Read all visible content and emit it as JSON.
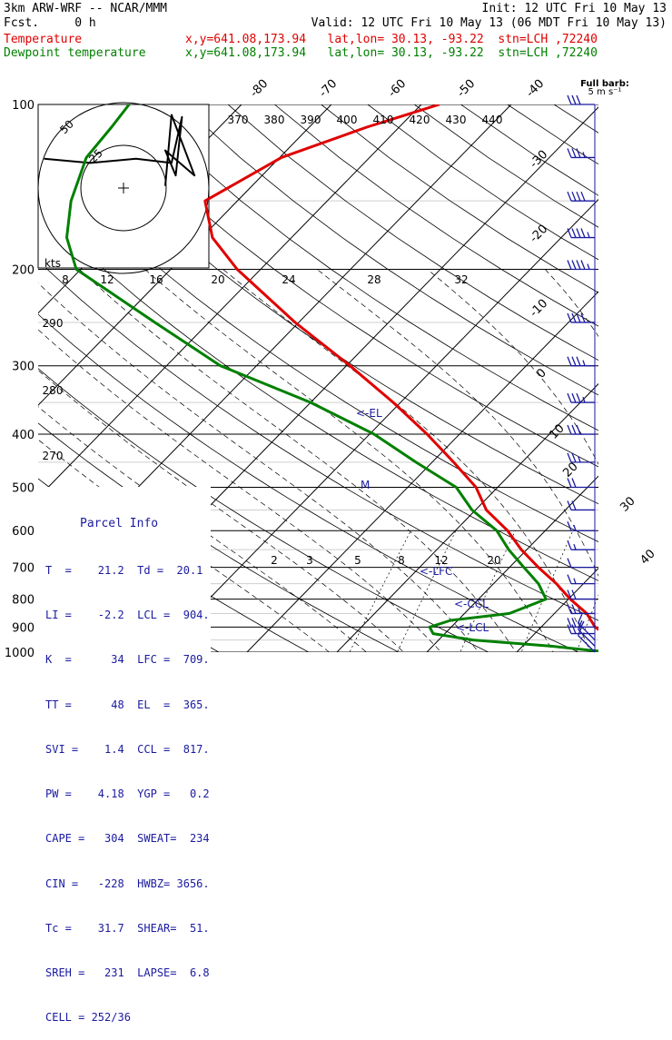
{
  "header": {
    "model": "3km ARW-WRF -- NCAR/MMM",
    "init": "Init: 12 UTC Fri 10 May 13",
    "fcst": "Fcst.     0 h",
    "valid": "Valid: 12 UTC Fri 10 May 13 (06 MDT Fri 10 May 13)",
    "temp_label": "Temperature",
    "temp_loc": "x,y=641.08,173.94   lat,lon= 30.13, -93.22  stn=LCH ,72240",
    "dew_label": "Dewpoint temperature",
    "dew_loc": "x,y=641.08,173.94   lat,lon= 30.13, -93.22  stn=LCH ,72240"
  },
  "barb_legend": {
    "line1": "Full barb:",
    "line2": "5 m s⁻¹"
  },
  "pressure_labels": [
    "100",
    "200",
    "300",
    "400",
    "500",
    "600",
    "700",
    "800",
    "900",
    "1000"
  ],
  "temp_top_labels": [
    "-80",
    "-70",
    "-60",
    "-50",
    "-40"
  ],
  "temp_right_labels": [
    "-30",
    "-20",
    "-10",
    "0",
    "10",
    "20",
    "30",
    "40"
  ],
  "theta_labels": [
    "370",
    "380",
    "390",
    "400",
    "410",
    "420",
    "430",
    "440"
  ],
  "theta_left_labels": [
    "290",
    "280",
    "270"
  ],
  "mixing_ratio_labels": [
    "2",
    "3",
    "5",
    "8",
    "12",
    "20"
  ],
  "hodograph": {
    "units": "kts",
    "ring_labels": [
      "25",
      "50"
    ],
    "speed_labels": [
      "8",
      "12",
      "16",
      "20",
      "24",
      "28",
      "32"
    ]
  },
  "levels": {
    "el": "<-EL",
    "lfc": "<-LFC",
    "ccl": "<-CCL",
    "lcl": "<-LCL",
    "m": "M"
  },
  "parcel_info": {
    "title": "Parcel Info",
    "rows": [
      "T  =    21.2  Td =  20.1",
      "LI =    -2.2  LCL =  904.",
      "K  =      34  LFC =  709.",
      "TT =      48  EL  =  365.",
      "SVI =    1.4  CCL =  817.",
      "PW =    4.18  YGP =   0.2",
      "CAPE =   304  SWEAT=  234",
      "CIN =   -228  HWBZ= 3656.",
      "Tc =    31.7  SHEAR=  51.",
      "SREH =   231  LAPSE=  6.8",
      "CELL = 252/36"
    ]
  },
  "chart_data": {
    "type": "line",
    "title": "",
    "y_axis": "pressure (hPa), log scale",
    "ylim": [
      1000,
      100
    ],
    "x_axis": "temperature (C), skewed",
    "series": [
      {
        "name": "Temperature",
        "color": "#e00000",
        "points": [
          [
            1000,
            21.2
          ],
          [
            975,
            20.4
          ],
          [
            950,
            19.3
          ],
          [
            925,
            17.8
          ],
          [
            900,
            16.0
          ],
          [
            850,
            13.6
          ],
          [
            800,
            10.2
          ],
          [
            750,
            7.0
          ],
          [
            700,
            3.2
          ],
          [
            650,
            -0.6
          ],
          [
            600,
            -4.2
          ],
          [
            550,
            -8.8
          ],
          [
            500,
            -12.4
          ],
          [
            450,
            -17.6
          ],
          [
            400,
            -23.6
          ],
          [
            350,
            -30.8
          ],
          [
            300,
            -39.6
          ],
          [
            250,
            -50.4
          ],
          [
            200,
            -62.6
          ],
          [
            175,
            -68.8
          ],
          [
            150,
            -73.6
          ],
          [
            125,
            -69.8
          ],
          [
            110,
            -63.6
          ],
          [
            100,
            -58.0
          ]
        ]
      },
      {
        "name": "Dewpoint temperature",
        "color": "#008000",
        "points": [
          [
            1000,
            20.1
          ],
          [
            975,
            13.2
          ],
          [
            950,
            3.8
          ],
          [
            925,
            -1.3
          ],
          [
            900,
            -2.4
          ],
          [
            875,
            -0.8
          ],
          [
            850,
            5.0
          ],
          [
            800,
            7.5
          ],
          [
            750,
            5.0
          ],
          [
            700,
            1.6
          ],
          [
            650,
            -2.0
          ],
          [
            600,
            -5.4
          ],
          [
            550,
            -10.4
          ],
          [
            500,
            -14.6
          ],
          [
            450,
            -21.8
          ],
          [
            400,
            -29.5
          ],
          [
            350,
            -40.0
          ],
          [
            300,
            -54.0
          ],
          [
            250,
            -66.0
          ],
          [
            200,
            -80.5
          ],
          [
            175,
            -85.0
          ],
          [
            150,
            -88.5
          ],
          [
            125,
            -91.5
          ],
          [
            110,
            -92.0
          ],
          [
            100,
            -92.5
          ]
        ]
      }
    ],
    "wind_barbs_kt": [
      [
        1000,
        10
      ],
      [
        975,
        10
      ],
      [
        950,
        15
      ],
      [
        925,
        20
      ],
      [
        900,
        25
      ],
      [
        850,
        25
      ],
      [
        800,
        20
      ],
      [
        750,
        15
      ],
      [
        700,
        10
      ],
      [
        650,
        15
      ],
      [
        600,
        15
      ],
      [
        550,
        20
      ],
      [
        500,
        20
      ],
      [
        450,
        25
      ],
      [
        400,
        30
      ],
      [
        350,
        35
      ],
      [
        300,
        35
      ],
      [
        250,
        40
      ],
      [
        200,
        45
      ],
      [
        175,
        45
      ],
      [
        150,
        40
      ],
      [
        125,
        35
      ],
      [
        100,
        30
      ]
    ],
    "hodograph_track": [
      [
        -38,
        -14
      ],
      [
        -16,
        -12
      ],
      [
        6,
        -14
      ],
      [
        23,
        -12
      ],
      [
        28,
        -34
      ],
      [
        25,
        -6
      ],
      [
        20,
        -18
      ],
      [
        34,
        -6
      ],
      [
        23,
        -35
      ],
      [
        20,
        -1
      ]
    ]
  }
}
